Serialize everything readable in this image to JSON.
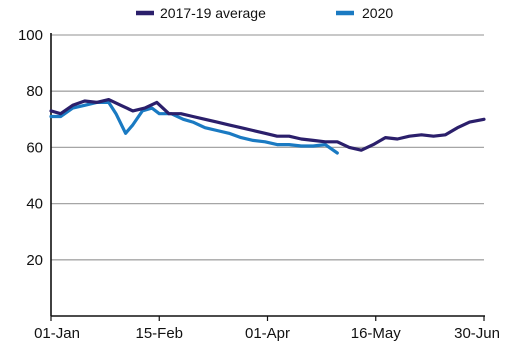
{
  "chart_data": {
    "type": "line",
    "title": "",
    "xlabel": "",
    "ylabel": "",
    "ylim": [
      0,
      100
    ],
    "yticks": [
      20,
      40,
      60,
      80,
      100
    ],
    "grid": true,
    "legend_position": "top",
    "x_axis": {
      "start": "01-Jan",
      "end": "30-Jun",
      "tick_labels": [
        "01-Jan",
        "15-Feb",
        "01-Apr",
        "16-May",
        "30-Jun"
      ]
    },
    "series": [
      {
        "name": "2017-19 average",
        "color": "#2b1f6b",
        "points": [
          [
            "01-Jan",
            73
          ],
          [
            "05-Jan",
            72
          ],
          [
            "10-Jan",
            75
          ],
          [
            "15-Jan",
            76.5
          ],
          [
            "20-Jan",
            76
          ],
          [
            "25-Jan",
            77
          ],
          [
            "30-Jan",
            75
          ],
          [
            "04-Feb",
            73
          ],
          [
            "09-Feb",
            74
          ],
          [
            "14-Feb",
            76
          ],
          [
            "19-Feb",
            72
          ],
          [
            "24-Feb",
            72
          ],
          [
            "01-Mar",
            71
          ],
          [
            "06-Mar",
            70
          ],
          [
            "11-Mar",
            69
          ],
          [
            "16-Mar",
            68
          ],
          [
            "21-Mar",
            67
          ],
          [
            "26-Mar",
            66
          ],
          [
            "31-Mar",
            65
          ],
          [
            "05-Apr",
            64
          ],
          [
            "10-Apr",
            64
          ],
          [
            "15-Apr",
            63
          ],
          [
            "20-Apr",
            62.5
          ],
          [
            "25-Apr",
            62
          ],
          [
            "30-Apr",
            62
          ],
          [
            "05-May",
            60
          ],
          [
            "10-May",
            59
          ],
          [
            "15-May",
            61
          ],
          [
            "20-May",
            63.5
          ],
          [
            "25-May",
            63
          ],
          [
            "30-May",
            64
          ],
          [
            "04-Jun",
            64.5
          ],
          [
            "09-Jun",
            64
          ],
          [
            "14-Jun",
            64.5
          ],
          [
            "19-Jun",
            67
          ],
          [
            "24-Jun",
            69
          ],
          [
            "30-Jun",
            70
          ]
        ]
      },
      {
        "name": "2020",
        "color": "#1a7ac2",
        "points": [
          [
            "01-Jan",
            71
          ],
          [
            "05-Jan",
            71
          ],
          [
            "10-Jan",
            74
          ],
          [
            "15-Jan",
            75
          ],
          [
            "20-Jan",
            76
          ],
          [
            "25-Jan",
            76
          ],
          [
            "28-Jan",
            72
          ],
          [
            "01-Feb",
            65
          ],
          [
            "04-Feb",
            68
          ],
          [
            "08-Feb",
            73
          ],
          [
            "12-Feb",
            74
          ],
          [
            "15-Feb",
            72
          ],
          [
            "20-Feb",
            72
          ],
          [
            "25-Feb",
            70
          ],
          [
            "01-Mar",
            69
          ],
          [
            "06-Mar",
            67
          ],
          [
            "11-Mar",
            66
          ],
          [
            "16-Mar",
            65
          ],
          [
            "21-Mar",
            63.5
          ],
          [
            "26-Mar",
            62.5
          ],
          [
            "31-Mar",
            62
          ],
          [
            "05-Apr",
            61
          ],
          [
            "10-Apr",
            61
          ],
          [
            "15-Apr",
            60.5
          ],
          [
            "20-Apr",
            60.5
          ],
          [
            "25-Apr",
            61
          ],
          [
            "30-Apr",
            58
          ]
        ]
      }
    ]
  }
}
